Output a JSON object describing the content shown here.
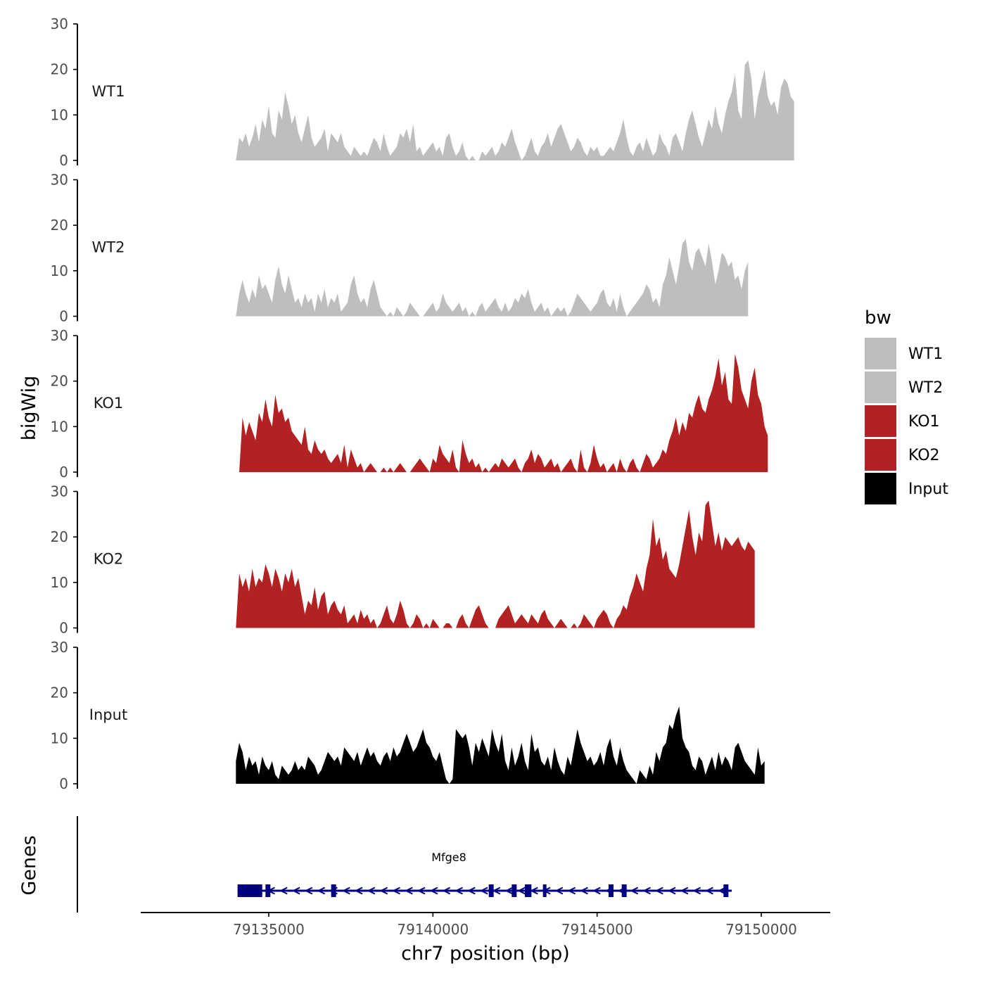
{
  "chart_data": {
    "type": "area",
    "ylabel": "bigWig",
    "xlabel": "chr7 position (bp)",
    "ylim": [
      0,
      30
    ],
    "y_ticks": [
      "0",
      "10",
      "20",
      "30"
    ],
    "xlim": [
      79131100,
      79152100
    ],
    "x_ticks": [
      {
        "value": 79135000,
        "label": "79135000"
      },
      {
        "value": 79140000,
        "label": "79140000"
      },
      {
        "value": 79145000,
        "label": "79145000"
      },
      {
        "value": 79150000,
        "label": "79150000"
      }
    ],
    "legend": {
      "title": "bw",
      "entries": [
        {
          "name": "WT1",
          "color": "#bebebe"
        },
        {
          "name": "WT2",
          "color": "#bebebe"
        },
        {
          "name": "KO1",
          "color": "#b22222"
        },
        {
          "name": "KO2",
          "color": "#b22222"
        },
        {
          "name": "Input",
          "color": "#000000"
        }
      ]
    },
    "series": [
      {
        "name": "WT1",
        "color": "#bebebe",
        "start": 79134000,
        "step": 100,
        "values": [
          0,
          5,
          4,
          6,
          3,
          5,
          8,
          4,
          9,
          7,
          12,
          6,
          5,
          11,
          9,
          15,
          12,
          8,
          10,
          6,
          4,
          7,
          10,
          5,
          3,
          4,
          5,
          7,
          2,
          6,
          5,
          4,
          6,
          3,
          2,
          1,
          3,
          2,
          1,
          2,
          1,
          3,
          5,
          4,
          2,
          6,
          3,
          1,
          2,
          3,
          6,
          5,
          7,
          4,
          8,
          2,
          3,
          1,
          2,
          3,
          4,
          2,
          3,
          1,
          5,
          6,
          3,
          1,
          2,
          4,
          1,
          0,
          1,
          0,
          0,
          2,
          1,
          2,
          3,
          1,
          2,
          4,
          3,
          5,
          7,
          4,
          2,
          0,
          1,
          3,
          5,
          2,
          1,
          3,
          4,
          6,
          3,
          5,
          7,
          8,
          6,
          4,
          2,
          3,
          5,
          4,
          2,
          1,
          3,
          2,
          3,
          1,
          1,
          2,
          3,
          2,
          4,
          6,
          9,
          5,
          2,
          1,
          3,
          4,
          2,
          5,
          3,
          1,
          2,
          6,
          4,
          3,
          1,
          5,
          6,
          4,
          2,
          6,
          9,
          11,
          8,
          5,
          3,
          6,
          9,
          7,
          12,
          8,
          6,
          10,
          13,
          15,
          19,
          11,
          9,
          21,
          22,
          18,
          9,
          14,
          17,
          20,
          14,
          12,
          13,
          10,
          16,
          18,
          17,
          14,
          13
        ]
      },
      {
        "name": "WT2",
        "color": "#bebebe",
        "start": 79134000,
        "step": 100,
        "values": [
          0,
          5,
          8,
          5,
          3,
          6,
          4,
          9,
          6,
          7,
          5,
          3,
          8,
          11,
          7,
          5,
          9,
          6,
          3,
          4,
          2,
          5,
          3,
          4,
          1,
          5,
          3,
          6,
          2,
          4,
          3,
          5,
          1,
          2,
          3,
          7,
          9,
          5,
          3,
          4,
          2,
          6,
          8,
          5,
          2,
          1,
          0,
          1,
          0,
          2,
          1,
          0,
          1,
          3,
          2,
          1,
          0,
          0,
          1,
          2,
          3,
          1,
          2,
          5,
          3,
          2,
          1,
          2,
          3,
          1,
          2,
          0,
          1,
          0,
          2,
          3,
          1,
          2,
          3,
          4,
          2,
          1,
          3,
          1,
          2,
          4,
          3,
          5,
          4,
          6,
          3,
          1,
          2,
          3,
          1,
          2,
          0,
          1,
          2,
          1,
          2,
          0,
          1,
          3,
          5,
          4,
          3,
          2,
          1,
          2,
          3,
          5,
          6,
          3,
          2,
          4,
          1,
          5,
          2,
          0,
          1,
          2,
          3,
          4,
          5,
          7,
          6,
          3,
          4,
          2,
          7,
          9,
          13,
          10,
          7,
          11,
          16,
          17,
          12,
          10,
          14,
          15,
          13,
          11,
          16,
          12,
          7,
          10,
          14,
          13,
          11,
          12,
          8,
          9,
          6,
          10,
          12
        ]
      },
      {
        "name": "KO1",
        "color": "#b22222",
        "start": 79134000,
        "step": 100,
        "values": [
          0,
          0,
          12,
          8,
          11,
          9,
          7,
          13,
          11,
          16,
          12,
          10,
          17,
          13,
          14,
          11,
          12,
          9,
          8,
          7,
          6,
          10,
          5,
          4,
          7,
          5,
          4,
          5,
          3,
          2,
          3,
          4,
          2,
          6,
          1,
          5,
          3,
          1,
          2,
          0,
          1,
          2,
          1,
          0,
          0,
          1,
          0,
          1,
          0,
          1,
          2,
          1,
          0,
          0,
          1,
          2,
          3,
          2,
          1,
          0,
          3,
          2,
          6,
          4,
          3,
          2,
          5,
          1,
          0,
          7,
          4,
          2,
          3,
          1,
          2,
          0,
          1,
          0,
          1,
          2,
          1,
          3,
          2,
          1,
          2,
          3,
          1,
          0,
          2,
          3,
          5,
          2,
          4,
          3,
          1,
          2,
          3,
          1,
          2,
          0,
          1,
          2,
          3,
          1,
          0,
          5,
          1,
          0,
          2,
          6,
          3,
          1,
          2,
          0,
          1,
          2,
          0,
          3,
          1,
          0,
          2,
          3,
          1,
          0,
          2,
          4,
          3,
          1,
          2,
          3,
          5,
          4,
          7,
          9,
          12,
          8,
          11,
          9,
          13,
          12,
          15,
          17,
          14,
          13,
          16,
          18,
          21,
          25,
          19,
          22,
          16,
          15,
          26,
          23,
          18,
          16,
          14,
          20,
          23,
          17,
          15,
          10,
          8
        ]
      },
      {
        "name": "KO2",
        "color": "#b22222",
        "start": 79134000,
        "step": 100,
        "values": [
          0,
          12,
          9,
          11,
          8,
          13,
          9,
          11,
          10,
          14,
          12,
          9,
          13,
          11,
          8,
          12,
          10,
          13,
          9,
          11,
          7,
          3,
          6,
          5,
          9,
          4,
          7,
          8,
          3,
          5,
          6,
          4,
          3,
          5,
          1,
          2,
          3,
          1,
          4,
          2,
          3,
          1,
          2,
          0,
          1,
          3,
          5,
          2,
          1,
          3,
          6,
          4,
          1,
          0,
          1,
          3,
          2,
          0,
          1,
          0,
          2,
          1,
          0,
          0,
          1,
          1,
          0,
          0,
          2,
          3,
          1,
          0,
          2,
          4,
          5,
          3,
          1,
          0,
          0,
          0,
          2,
          3,
          4,
          5,
          3,
          1,
          2,
          3,
          2,
          1,
          3,
          2,
          1,
          3,
          4,
          2,
          1,
          0,
          1,
          2,
          1,
          0,
          0,
          1,
          0,
          1,
          3,
          2,
          1,
          0,
          2,
          3,
          4,
          3,
          1,
          0,
          2,
          3,
          5,
          4,
          7,
          9,
          12,
          10,
          8,
          13,
          16,
          24,
          18,
          20,
          15,
          17,
          13,
          12,
          11,
          14,
          18,
          22,
          26,
          20,
          16,
          21,
          19,
          27,
          28,
          23,
          18,
          21,
          17,
          20,
          19,
          18,
          19,
          20,
          18,
          17,
          19,
          18,
          17
        ]
      },
      {
        "name": "Input",
        "color": "#000000",
        "start": 79134000,
        "step": 100,
        "values": [
          5,
          9,
          7,
          3,
          6,
          4,
          5,
          2,
          6,
          4,
          3,
          5,
          2,
          1,
          4,
          3,
          2,
          3,
          5,
          3,
          4,
          3,
          6,
          5,
          4,
          2,
          3,
          5,
          7,
          6,
          5,
          6,
          4,
          8,
          7,
          6,
          5,
          7,
          4,
          6,
          8,
          6,
          7,
          5,
          4,
          6,
          7,
          5,
          8,
          6,
          7,
          9,
          11,
          9,
          7,
          8,
          10,
          12,
          9,
          8,
          6,
          5,
          7,
          4,
          1,
          0,
          1,
          12,
          11,
          10,
          11,
          8,
          4,
          9,
          7,
          10,
          8,
          6,
          12,
          9,
          7,
          11,
          5,
          3,
          8,
          4,
          6,
          9,
          5,
          3,
          11,
          7,
          8,
          5,
          4,
          6,
          3,
          8,
          5,
          3,
          2,
          6,
          4,
          8,
          12,
          9,
          7,
          5,
          6,
          4,
          5,
          7,
          4,
          8,
          10,
          6,
          4,
          8,
          5,
          3,
          2,
          1,
          0,
          3,
          2,
          1,
          4,
          2,
          7,
          5,
          8,
          9,
          13,
          12,
          15,
          17,
          10,
          8,
          7,
          4,
          3,
          6,
          5,
          2,
          4,
          6,
          3,
          7,
          4,
          6,
          5,
          3,
          8,
          9,
          7,
          5,
          4,
          3,
          2,
          8,
          4,
          5
        ]
      }
    ],
    "genes_track": {
      "ylabel": "Genes",
      "gene_name": "Mfge8",
      "strand": "-",
      "color": "#000080",
      "start": 79134050,
      "end": 79149100,
      "exons": [
        [
          79134050,
          79134800
        ],
        [
          79134900,
          79135050
        ],
        [
          79136900,
          79137050
        ],
        [
          79141700,
          79141850
        ],
        [
          79142400,
          79142550
        ],
        [
          79142800,
          79143000
        ],
        [
          79143350,
          79143450
        ],
        [
          79145350,
          79145500
        ],
        [
          79145750,
          79145900
        ],
        [
          79148850,
          79149000
        ]
      ]
    }
  }
}
